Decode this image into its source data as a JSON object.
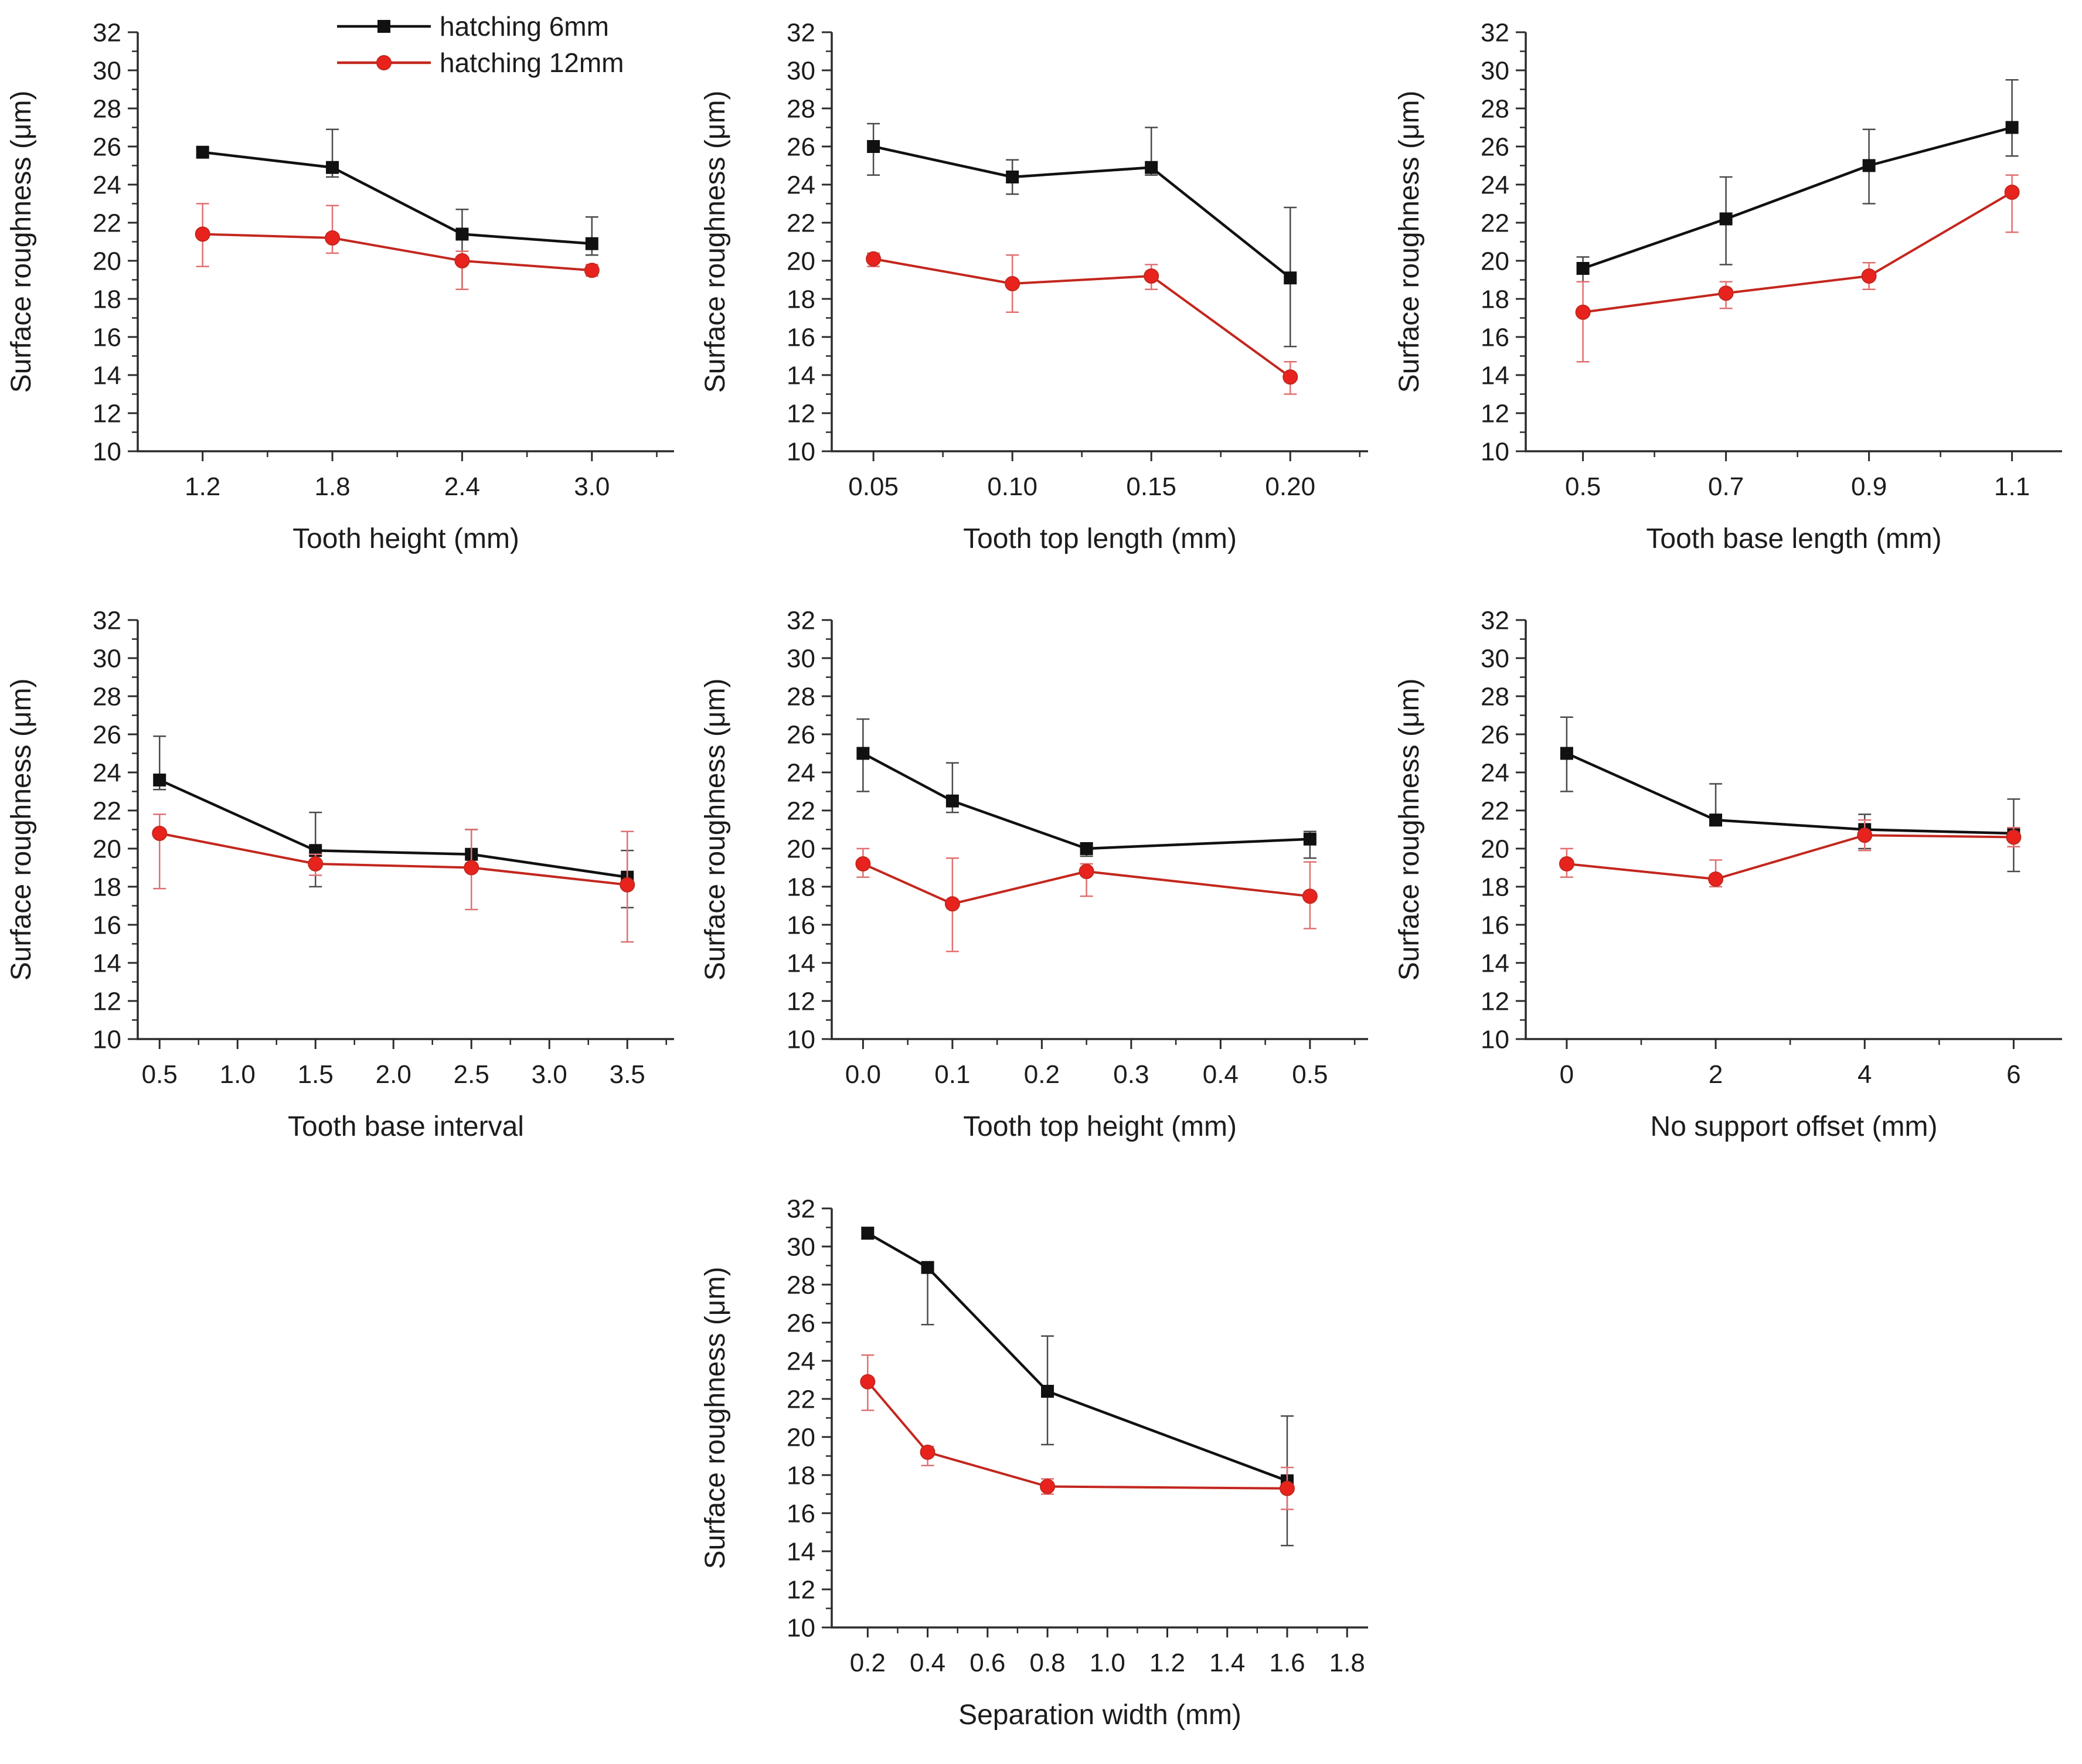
{
  "figure": {
    "background": "#ffffff"
  },
  "colors": {
    "axis": "#2b2b2b",
    "text": "#1c1c1c",
    "black_series": "#111111",
    "red_line": "#c3271e",
    "red_fill": "#e8231d",
    "err_black": "#4a4a4a",
    "err_red": "#e07070"
  },
  "legend": {
    "position": "top-right-first-chart",
    "items": [
      {
        "label": "hatching 6mm",
        "marker": "square",
        "color": "#111111"
      },
      {
        "label": "hatching 12mm",
        "marker": "circle",
        "color": "#c3271e",
        "fill": "#e8231d"
      }
    ]
  },
  "chart_data": [
    {
      "type": "line",
      "title": "",
      "xlabel": "Tooth height (mm)",
      "ylabel": "Surface roughness (μm)",
      "ylim": [
        10,
        32
      ],
      "ytick_step": 2,
      "yminor_step": 1,
      "xlim": [
        0.9,
        3.38
      ],
      "xticks": [
        1.2,
        1.8,
        2.4,
        3.0
      ],
      "xtick_labels": [
        "1.2",
        "1.8",
        "2.4",
        "3.0"
      ],
      "xminor": [
        1.5,
        2.1,
        2.7,
        3.3
      ],
      "grid": false,
      "legend": true,
      "x": [
        1.2,
        1.8,
        2.4,
        3.0
      ],
      "series": [
        {
          "name": "hatching 6mm",
          "marker": "square",
          "values": [
            25.7,
            24.9,
            21.4,
            20.9
          ],
          "err_up": [
            0.2,
            2.0,
            1.3,
            1.4
          ],
          "err_down": [
            0.2,
            0.5,
            2.9,
            0.6
          ]
        },
        {
          "name": "hatching 12mm",
          "marker": "circle",
          "values": [
            21.4,
            21.2,
            20.0,
            19.5
          ],
          "err_up": [
            1.6,
            1.7,
            0.5,
            0.3
          ],
          "err_down": [
            1.7,
            0.8,
            1.5,
            0.3
          ]
        }
      ]
    },
    {
      "type": "line",
      "title": "",
      "xlabel": "Tooth top length (mm)",
      "ylabel": "Surface roughness (μm)",
      "ylim": [
        10,
        32
      ],
      "ytick_step": 2,
      "yminor_step": 1,
      "xlim": [
        0.035,
        0.228
      ],
      "xticks": [
        0.05,
        0.1,
        0.15,
        0.2
      ],
      "xtick_labels": [
        "0.05",
        "0.10",
        "0.15",
        "0.20"
      ],
      "xminor": [
        0.075,
        0.125,
        0.175,
        0.225
      ],
      "grid": false,
      "legend": false,
      "x": [
        0.05,
        0.1,
        0.15,
        0.2
      ],
      "series": [
        {
          "name": "hatching 6mm",
          "marker": "square",
          "values": [
            26.0,
            24.4,
            24.9,
            19.1
          ],
          "err_up": [
            1.2,
            0.9,
            2.1,
            3.7
          ],
          "err_down": [
            1.5,
            0.9,
            0.4,
            3.6
          ]
        },
        {
          "name": "hatching 12mm",
          "marker": "circle",
          "values": [
            20.1,
            18.8,
            19.2,
            13.9
          ],
          "err_up": [
            0.3,
            1.5,
            0.6,
            0.8
          ],
          "err_down": [
            0.4,
            1.5,
            0.7,
            0.9
          ]
        }
      ]
    },
    {
      "type": "line",
      "title": "",
      "xlabel": "Tooth base length (mm)",
      "ylabel": "Surface roughness (μm)",
      "ylim": [
        10,
        32
      ],
      "ytick_step": 2,
      "yminor_step": 1,
      "xlim": [
        0.42,
        1.17
      ],
      "xticks": [
        0.5,
        0.7,
        0.9,
        1.1
      ],
      "xtick_labels": [
        "0.5",
        "0.7",
        "0.9",
        "1.1"
      ],
      "xminor": [
        0.6,
        0.8,
        1.0
      ],
      "grid": false,
      "legend": false,
      "x": [
        0.5,
        0.7,
        0.9,
        1.1
      ],
      "series": [
        {
          "name": "hatching 6mm",
          "marker": "square",
          "values": [
            19.6,
            22.2,
            25.0,
            27.0
          ],
          "err_up": [
            0.6,
            2.2,
            1.9,
            2.5
          ],
          "err_down": [
            0.7,
            2.4,
            2.0,
            1.5
          ]
        },
        {
          "name": "hatching 12mm",
          "marker": "circle",
          "values": [
            17.3,
            18.3,
            19.2,
            23.6
          ],
          "err_up": [
            1.6,
            0.6,
            0.7,
            0.9
          ],
          "err_down": [
            2.6,
            0.8,
            0.7,
            2.1
          ]
        }
      ]
    },
    {
      "type": "line",
      "title": "",
      "xlabel": "Tooth base interval",
      "ylabel": "Surface roughness (μm)",
      "ylim": [
        10,
        32
      ],
      "ytick_step": 2,
      "yminor_step": 1,
      "xlim": [
        0.36,
        3.8
      ],
      "xticks": [
        0.5,
        1.0,
        1.5,
        2.0,
        2.5,
        3.0,
        3.5
      ],
      "xtick_labels": [
        "0.5",
        "1.0",
        "1.5",
        "2.0",
        "2.5",
        "3.0",
        "3.5"
      ],
      "xminor": [
        0.75,
        1.25,
        1.75,
        2.25,
        2.75,
        3.25,
        3.75
      ],
      "grid": false,
      "legend": false,
      "x": [
        0.5,
        1.5,
        2.5,
        3.5
      ],
      "series": [
        {
          "name": "hatching 6mm",
          "marker": "square",
          "values": [
            23.6,
            19.9,
            19.7,
            18.5
          ],
          "err_up": [
            2.3,
            2.0,
            1.3,
            1.4
          ],
          "err_down": [
            0.5,
            1.9,
            0.5,
            1.6
          ]
        },
        {
          "name": "hatching 12mm",
          "marker": "circle",
          "values": [
            20.8,
            19.2,
            19.0,
            18.1
          ],
          "err_up": [
            1.0,
            0.5,
            2.0,
            2.8
          ],
          "err_down": [
            2.9,
            0.6,
            2.2,
            3.0
          ]
        }
      ]
    },
    {
      "type": "line",
      "title": "",
      "xlabel": "Tooth top height (mm)",
      "ylabel": "Surface roughness (μm)",
      "ylim": [
        10,
        32
      ],
      "ytick_step": 2,
      "yminor_step": 1,
      "xlim": [
        -0.035,
        0.565
      ],
      "xticks": [
        0.0,
        0.1,
        0.2,
        0.3,
        0.4,
        0.5
      ],
      "xtick_labels": [
        "0.0",
        "0.1",
        "0.2",
        "0.3",
        "0.4",
        "0.5"
      ],
      "xminor": [
        0.05,
        0.15,
        0.25,
        0.35,
        0.45,
        0.55
      ],
      "grid": false,
      "legend": false,
      "x": [
        0.0,
        0.1,
        0.25,
        0.5
      ],
      "series": [
        {
          "name": "hatching 6mm",
          "marker": "square",
          "values": [
            25.0,
            22.5,
            20.0,
            20.5
          ],
          "err_up": [
            1.8,
            2.0,
            0.3,
            0.4
          ],
          "err_down": [
            2.0,
            0.6,
            0.4,
            1.0
          ]
        },
        {
          "name": "hatching 12mm",
          "marker": "circle",
          "values": [
            19.2,
            17.1,
            18.8,
            17.5
          ],
          "err_up": [
            0.8,
            2.4,
            0.4,
            1.8
          ],
          "err_down": [
            0.7,
            2.5,
            1.3,
            1.7
          ]
        }
      ]
    },
    {
      "type": "line",
      "title": "",
      "xlabel": "No support offset (mm)",
      "ylabel": "Surface roughness (μm)",
      "ylim": [
        10,
        32
      ],
      "ytick_step": 2,
      "yminor_step": 1,
      "xlim": [
        -0.55,
        6.65
      ],
      "xticks": [
        0,
        2,
        4,
        6
      ],
      "xtick_labels": [
        "0",
        "2",
        "4",
        "6"
      ],
      "xminor": [
        1,
        3,
        5
      ],
      "grid": false,
      "legend": false,
      "x": [
        0,
        2,
        4,
        6
      ],
      "series": [
        {
          "name": "hatching 6mm",
          "marker": "square",
          "values": [
            25.0,
            21.5,
            21.0,
            20.8
          ],
          "err_up": [
            1.9,
            1.9,
            0.8,
            1.8
          ],
          "err_down": [
            2.0,
            0.3,
            1.0,
            2.0
          ]
        },
        {
          "name": "hatching 12mm",
          "marker": "circle",
          "values": [
            19.2,
            18.4,
            20.7,
            20.6
          ],
          "err_up": [
            0.8,
            1.0,
            0.8,
            0.5
          ],
          "err_down": [
            0.7,
            0.4,
            0.8,
            0.5
          ]
        }
      ]
    },
    {
      "type": "line",
      "title": "",
      "xlabel": "Separation width (mm)",
      "ylabel": "Surface roughness (μm)",
      "ylim": [
        10,
        32
      ],
      "ytick_step": 2,
      "yminor_step": 1,
      "xlim": [
        0.08,
        1.87
      ],
      "xticks": [
        0.2,
        0.4,
        0.6,
        0.8,
        1.0,
        1.2,
        1.4,
        1.6,
        1.8
      ],
      "xtick_labels": [
        "0.2",
        "0.4",
        "0.6",
        "0.8",
        "1.0",
        "1.2",
        "1.4",
        "1.6",
        "1.8"
      ],
      "xminor": [
        0.3,
        0.5,
        0.7,
        0.9,
        1.1,
        1.3,
        1.5,
        1.7
      ],
      "grid": false,
      "legend": false,
      "x": [
        0.2,
        0.4,
        0.8,
        1.6
      ],
      "series": [
        {
          "name": "hatching 6mm",
          "marker": "square",
          "values": [
            30.7,
            28.9,
            22.4,
            17.7
          ],
          "err_up": [
            0.3,
            0.2,
            2.9,
            3.4
          ],
          "err_down": [
            0.3,
            3.0,
            2.8,
            3.4
          ]
        },
        {
          "name": "hatching 12mm",
          "marker": "circle",
          "values": [
            22.9,
            19.2,
            17.4,
            17.3
          ],
          "err_up": [
            1.4,
            0.3,
            0.4,
            1.1
          ],
          "err_down": [
            1.5,
            0.7,
            0.4,
            1.1
          ]
        }
      ]
    }
  ]
}
